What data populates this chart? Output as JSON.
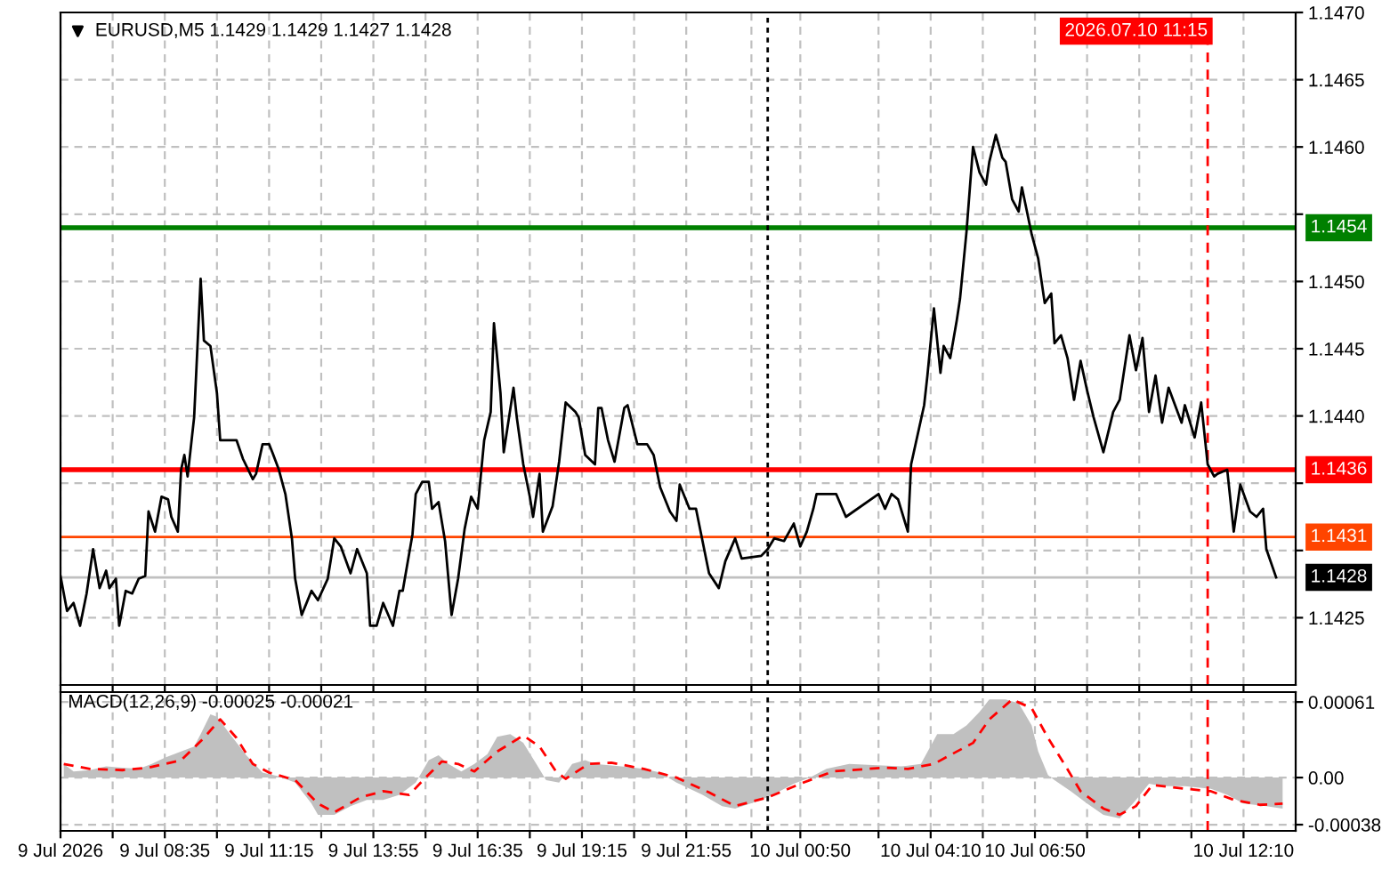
{
  "chart_data": [
    {
      "type": "line",
      "title": "EURUSD,M5 1.1429 1.1429 1.1427 1.1428",
      "xlim": [
        "2026-07-09T05:55",
        "2026-07-10T13:30"
      ],
      "xticks": [
        {
          "value": "2026-07-09T05:55",
          "label": null
        },
        {
          "value": "2026-07-09T07:15",
          "label": null
        },
        {
          "value": "2026-07-09T08:35",
          "label": null
        },
        {
          "value": "2026-07-09T09:55",
          "label": null
        },
        {
          "value": "2026-07-09T11:15",
          "label": null
        },
        {
          "value": "2026-07-09T12:35",
          "label": null
        },
        {
          "value": "2026-07-09T13:55",
          "label": null
        },
        {
          "value": "2026-07-09T15:15",
          "label": null
        },
        {
          "value": "2026-07-09T16:35",
          "label": null
        },
        {
          "value": "2026-07-09T17:55",
          "label": null
        },
        {
          "value": "2026-07-09T19:15",
          "label": null
        },
        {
          "value": "2026-07-09T20:35",
          "label": null
        },
        {
          "value": "2026-07-09T21:55",
          "label": null
        },
        {
          "value": "2026-07-09T23:35",
          "label": null
        },
        {
          "value": "2026-07-10T00:50",
          "label": null
        },
        {
          "value": "2026-07-10T02:50",
          "label": null
        },
        {
          "value": "2026-07-10T04:10",
          "label": null
        },
        {
          "value": "2026-07-10T05:30",
          "label": null
        },
        {
          "value": "2026-07-10T06:50",
          "label": null
        },
        {
          "value": "2026-07-10T08:10",
          "label": null
        },
        {
          "value": "2026-07-10T09:30",
          "label": null
        },
        {
          "value": "2026-07-10T10:50",
          "label": null
        },
        {
          "value": "2026-07-10T12:10",
          "label": null
        }
      ],
      "ylim": [
        1.142,
        1.147
      ],
      "yticks": [
        {
          "value": 1.1425,
          "label": "1.1425"
        },
        {
          "value": 1.143,
          "label": null
        },
        {
          "value": 1.1435,
          "label": null
        },
        {
          "value": 1.144,
          "label": "1.1440"
        },
        {
          "value": 1.1445,
          "label": "1.1445"
        },
        {
          "value": 1.145,
          "label": "1.1450"
        },
        {
          "value": 1.1455,
          "label": null
        },
        {
          "value": 1.146,
          "label": "1.1460"
        },
        {
          "value": 1.1465,
          "label": "1.1465"
        },
        {
          "value": 1.147,
          "label": "1.1470"
        }
      ],
      "tick_labels": "y",
      "grid": true,
      "marker": "none",
      "line_style": "solid",
      "ref_lines": [
        {
          "axis": "y",
          "value": 1.1454,
          "label": "1.1454",
          "color": "#008000",
          "line_style": "solid"
        },
        {
          "axis": "y",
          "value": 1.1436,
          "label": "1.1436",
          "color": "#ff0000",
          "line_style": "solid"
        },
        {
          "axis": "y",
          "value": 1.1431,
          "label": "1.1431",
          "color": "#ff4500",
          "line_style": "solid"
        },
        {
          "axis": "y",
          "value": 1.1428,
          "label": "1.1428",
          "color": "#c0c0c0",
          "line_style": "solid"
        },
        {
          "axis": "x",
          "value": "2026-07-10T00:00",
          "color": "#000000",
          "line_style": "dotted"
        },
        {
          "axis": "x",
          "value": "2026-07-10T11:15",
          "label": "2026.07.10 11:15",
          "color": "#ff0000",
          "line_style": "dashed"
        }
      ],
      "series": [
        {
          "color": "#000000",
          "x": [
            "2026-07-09T05:55",
            "2026-07-09T06:05",
            "2026-07-09T06:15",
            "2026-07-09T06:25",
            "2026-07-09T06:35",
            "2026-07-09T06:45",
            "2026-07-09T06:55",
            "2026-07-09T07:05",
            "2026-07-09T07:10",
            "2026-07-09T07:20",
            "2026-07-09T07:25",
            "2026-07-09T07:35",
            "2026-07-09T07:45",
            "2026-07-09T07:55",
            "2026-07-09T08:05",
            "2026-07-09T08:10",
            "2026-07-09T08:20",
            "2026-07-09T08:30",
            "2026-07-09T08:40",
            "2026-07-09T08:45",
            "2026-07-09T08:55",
            "2026-07-09T09:00",
            "2026-07-09T09:05",
            "2026-07-09T09:10",
            "2026-07-09T09:20",
            "2026-07-09T09:30",
            "2026-07-09T09:35",
            "2026-07-09T09:45",
            "2026-07-09T09:55",
            "2026-07-09T10:00",
            "2026-07-09T10:25",
            "2026-07-09T10:35",
            "2026-07-09T10:50",
            "2026-07-09T10:55",
            "2026-07-09T11:05",
            "2026-07-09T11:15",
            "2026-07-09T11:20",
            "2026-07-09T11:30",
            "2026-07-09T11:40",
            "2026-07-09T11:50",
            "2026-07-09T11:55",
            "2026-07-09T12:05",
            "2026-07-09T12:20",
            "2026-07-09T12:30",
            "2026-07-09T12:45",
            "2026-07-09T12:55",
            "2026-07-09T13:05",
            "2026-07-09T13:20",
            "2026-07-09T13:30",
            "2026-07-09T13:45",
            "2026-07-09T13:50",
            "2026-07-09T14:00",
            "2026-07-09T14:10",
            "2026-07-09T14:25",
            "2026-07-09T14:35",
            "2026-07-09T14:40",
            "2026-07-09T14:55",
            "2026-07-09T15:00",
            "2026-07-09T15:10",
            "2026-07-09T15:20",
            "2026-07-09T15:25",
            "2026-07-09T15:35",
            "2026-07-09T15:45",
            "2026-07-09T15:55",
            "2026-07-09T16:05",
            "2026-07-09T16:15",
            "2026-07-09T16:25",
            "2026-07-09T16:35",
            "2026-07-09T16:45",
            "2026-07-09T16:55",
            "2026-07-09T17:00",
            "2026-07-09T17:10",
            "2026-07-09T17:15",
            "2026-07-09T17:30",
            "2026-07-09T17:35",
            "2026-07-09T17:45",
            "2026-07-09T17:55",
            "2026-07-09T18:00",
            "2026-07-09T18:10",
            "2026-07-09T18:15",
            "2026-07-09T18:30",
            "2026-07-09T18:40",
            "2026-07-09T18:50",
            "2026-07-09T19:05",
            "2026-07-09T19:10",
            "2026-07-09T19:20",
            "2026-07-09T19:35",
            "2026-07-09T19:40",
            "2026-07-09T19:45",
            "2026-07-09T19:55",
            "2026-07-09T20:05",
            "2026-07-09T20:20",
            "2026-07-09T20:25",
            "2026-07-09T20:40",
            "2026-07-09T20:55",
            "2026-07-09T21:05",
            "2026-07-09T21:15",
            "2026-07-09T21:30",
            "2026-07-09T21:40",
            "2026-07-09T21:45",
            "2026-07-09T22:00",
            "2026-07-09T22:10",
            "2026-07-09T22:30",
            "2026-07-09T22:45",
            "2026-07-09T22:55",
            "2026-07-09T23:10",
            "2026-07-09T23:20",
            "2026-07-09T23:50",
            "2026-07-10T00:00",
            "2026-07-10T00:10",
            "2026-07-10T00:25",
            "2026-07-10T00:40",
            "2026-07-10T00:50",
            "2026-07-10T01:00",
            "2026-07-10T01:10",
            "2026-07-10T01:15",
            "2026-07-10T01:45",
            "2026-07-10T02:00",
            "2026-07-10T02:50",
            "2026-07-10T03:00",
            "2026-07-10T03:10",
            "2026-07-10T03:20",
            "2026-07-10T03:35",
            "2026-07-10T03:40",
            "2026-07-10T04:00",
            "2026-07-10T04:05",
            "2026-07-10T04:15",
            "2026-07-10T04:25",
            "2026-07-10T04:30",
            "2026-07-10T04:40",
            "2026-07-10T04:50",
            "2026-07-10T04:55",
            "2026-07-10T05:05",
            "2026-07-10T05:15",
            "2026-07-10T05:25",
            "2026-07-10T05:35",
            "2026-07-10T05:40",
            "2026-07-10T05:50",
            "2026-07-10T06:00",
            "2026-07-10T06:05",
            "2026-07-10T06:15",
            "2026-07-10T06:25",
            "2026-07-10T06:30",
            "2026-07-10T06:45",
            "2026-07-10T06:55",
            "2026-07-10T07:05",
            "2026-07-10T07:15",
            "2026-07-10T07:20",
            "2026-07-10T07:30",
            "2026-07-10T07:40",
            "2026-07-10T07:50",
            "2026-07-10T08:00",
            "2026-07-10T08:10",
            "2026-07-10T08:20",
            "2026-07-10T08:35",
            "2026-07-10T08:50",
            "2026-07-10T09:00",
            "2026-07-10T09:15",
            "2026-07-10T09:25",
            "2026-07-10T09:35",
            "2026-07-10T09:45",
            "2026-07-10T09:55",
            "2026-07-10T10:05",
            "2026-07-10T10:15",
            "2026-07-10T10:35",
            "2026-07-10T10:40",
            "2026-07-10T10:55",
            "2026-07-10T11:05",
            "2026-07-10T11:15",
            "2026-07-10T11:25",
            "2026-07-10T11:30",
            "2026-07-10T11:45",
            "2026-07-10T11:55",
            "2026-07-10T12:05",
            "2026-07-10T12:20",
            "2026-07-10T12:30",
            "2026-07-10T12:40",
            "2026-07-10T12:45",
            "2026-07-10T13:00"
          ],
          "values": [
            1.14281,
            1.14255,
            1.14261,
            1.14244,
            1.14268,
            1.14301,
            1.14272,
            1.14285,
            1.14272,
            1.14279,
            1.14244,
            1.1427,
            1.14268,
            1.14279,
            1.14281,
            1.14329,
            1.14314,
            1.1434,
            1.14338,
            1.14325,
            1.14314,
            1.1436,
            1.14371,
            1.14355,
            1.14399,
            1.14502,
            1.14456,
            1.14452,
            1.14417,
            1.14382,
            1.14382,
            1.14368,
            1.14353,
            1.14357,
            1.14379,
            1.14379,
            1.14373,
            1.1436,
            1.14342,
            1.14309,
            1.14279,
            1.14252,
            1.1427,
            1.14263,
            1.14279,
            1.14309,
            1.14303,
            1.14283,
            1.14301,
            1.14283,
            1.14244,
            1.14244,
            1.14261,
            1.14244,
            1.1427,
            1.1427,
            1.14312,
            1.14342,
            1.14351,
            1.14351,
            1.14331,
            1.14336,
            1.14307,
            1.14252,
            1.14279,
            1.14316,
            1.1434,
            1.14331,
            1.14382,
            1.14403,
            1.14469,
            1.14417,
            1.14373,
            1.14421,
            1.14399,
            1.14364,
            1.1434,
            1.14325,
            1.14357,
            1.14314,
            1.14333,
            1.14366,
            1.1441,
            1.14403,
            1.14399,
            1.14371,
            1.14364,
            1.14406,
            1.14406,
            1.14382,
            1.14366,
            1.14406,
            1.14408,
            1.14379,
            1.14379,
            1.14371,
            1.14347,
            1.14329,
            1.14322,
            1.14349,
            1.14331,
            1.14331,
            1.14283,
            1.14272,
            1.14292,
            1.14309,
            1.14294,
            1.14296,
            1.14301,
            1.14309,
            1.14307,
            1.1432,
            1.14303,
            1.14314,
            1.14331,
            1.14342,
            1.14342,
            1.14325,
            1.14342,
            1.14331,
            1.14342,
            1.14338,
            1.14314,
            1.14364,
            1.14408,
            1.1443,
            1.1448,
            1.14432,
            1.14452,
            1.14443,
            1.14471,
            1.14487,
            1.14537,
            1.146,
            1.14581,
            1.14572,
            1.14589,
            1.14609,
            1.14592,
            1.14589,
            1.14561,
            1.14552,
            1.1457,
            1.14535,
            1.14517,
            1.14484,
            1.14491,
            1.14454,
            1.1446,
            1.14443,
            1.14412,
            1.14441,
            1.14419,
            1.14399,
            1.14373,
            1.14403,
            1.14412,
            1.1446,
            1.14434,
            1.14458,
            1.14403,
            1.1443,
            1.14395,
            1.14421,
            1.14395,
            1.14408,
            1.14384,
            1.1441,
            1.14364,
            1.14355,
            1.14357,
            1.1436,
            1.14314,
            1.14349,
            1.14329,
            1.14325,
            1.14331,
            1.14301,
            1.1428
          ]
        }
      ]
    },
    {
      "type": "bar",
      "title": "MACD(12,26,9) -0.00025 -0.00021",
      "xlim": [
        "2026-07-09T05:55",
        "2026-07-10T13:30"
      ],
      "xticks": [
        {
          "value": "2026-07-09T05:55",
          "label": "9 Jul 2026"
        },
        {
          "value": "2026-07-09T07:15",
          "label": null
        },
        {
          "value": "2026-07-09T08:35",
          "label": "9 Jul 08:35"
        },
        {
          "value": "2026-07-09T09:55",
          "label": null
        },
        {
          "value": "2026-07-09T11:15",
          "label": "9 Jul 11:15"
        },
        {
          "value": "2026-07-09T12:35",
          "label": null
        },
        {
          "value": "2026-07-09T13:55",
          "label": "9 Jul 13:55"
        },
        {
          "value": "2026-07-09T15:15",
          "label": null
        },
        {
          "value": "2026-07-09T16:35",
          "label": "9 Jul 16:35"
        },
        {
          "value": "2026-07-09T17:55",
          "label": null
        },
        {
          "value": "2026-07-09T19:15",
          "label": "9 Jul 19:15"
        },
        {
          "value": "2026-07-09T20:35",
          "label": null
        },
        {
          "value": "2026-07-09T21:55",
          "label": "9 Jul 21:55"
        },
        {
          "value": "2026-07-09T23:35",
          "label": null
        },
        {
          "value": "2026-07-10T00:50",
          "label": "10 Jul 00:50"
        },
        {
          "value": "2026-07-10T02:50",
          "label": null
        },
        {
          "value": "2026-07-10T04:10",
          "label": "10 Jul 04:10"
        },
        {
          "value": "2026-07-10T05:30",
          "label": null
        },
        {
          "value": "2026-07-10T06:50",
          "label": "10 Jul 06:50"
        },
        {
          "value": "2026-07-10T08:10",
          "label": null
        },
        {
          "value": "2026-07-10T09:30",
          "label": null
        },
        {
          "value": "2026-07-10T10:50",
          "label": null
        },
        {
          "value": "2026-07-10T12:10",
          "label": "10 Jul 12:10"
        }
      ],
      "ylim": [
        -0.00043,
        0.00069
      ],
      "yticks": [
        {
          "value": 0.00061,
          "label": "0.00061"
        },
        {
          "value": 0,
          "label": "0.00"
        },
        {
          "value": -0.00038,
          "label": "-0.00038"
        }
      ],
      "grid": true,
      "ref_lines": [
        {
          "axis": "x",
          "value": "2026-07-10T00:00",
          "color": "#000000",
          "line_style": "dotted"
        },
        {
          "axis": "x",
          "value": "2026-07-10T11:15",
          "color": "#ff0000",
          "line_style": "dashed"
        }
      ],
      "series": [
        {
          "type": "area",
          "color": "#c0c0c0",
          "x": [
            "2026-07-09T06:00",
            "2026-07-09T06:15",
            "2026-07-09T06:40",
            "2026-07-09T07:05",
            "2026-07-09T07:30",
            "2026-07-09T07:55",
            "2026-07-09T08:15",
            "2026-07-09T08:35",
            "2026-07-09T09:00",
            "2026-07-09T09:20",
            "2026-07-09T09:30",
            "2026-07-09T09:45",
            "2026-07-09T09:55",
            "2026-07-09T10:15",
            "2026-07-09T10:40",
            "2026-07-09T11:05",
            "2026-07-09T11:30",
            "2026-07-09T11:55",
            "2026-07-09T12:20",
            "2026-07-09T12:30",
            "2026-07-09T12:55",
            "2026-07-09T13:20",
            "2026-07-09T13:45",
            "2026-07-09T14:10",
            "2026-07-09T14:35",
            "2026-07-09T15:00",
            "2026-07-09T15:20",
            "2026-07-09T15:35",
            "2026-07-09T15:50",
            "2026-07-09T16:10",
            "2026-07-09T16:30",
            "2026-07-09T16:50",
            "2026-07-09T17:05",
            "2026-07-09T17:25",
            "2026-07-09T17:45",
            "2026-07-09T18:05",
            "2026-07-09T18:20",
            "2026-07-09T18:40",
            "2026-07-09T19:00",
            "2026-07-09T19:20",
            "2026-07-09T19:35",
            "2026-07-09T20:15",
            "2026-07-09T20:50",
            "2026-07-09T21:15",
            "2026-07-09T21:40",
            "2026-07-09T22:20",
            "2026-07-09T22:50",
            "2026-07-09T23:10",
            "2026-07-09T23:50",
            "2026-07-10T00:15",
            "2026-07-10T00:40",
            "2026-07-10T01:05",
            "2026-07-10T01:30",
            "2026-07-10T02:05",
            "2026-07-10T03:25",
            "2026-07-10T03:55",
            "2026-07-10T04:20",
            "2026-07-10T04:45",
            "2026-07-10T05:05",
            "2026-07-10T05:25",
            "2026-07-10T05:40",
            "2026-07-10T06:05",
            "2026-07-10T06:25",
            "2026-07-10T06:45",
            "2026-07-10T06:55",
            "2026-07-10T07:10",
            "2026-07-10T07:20",
            "2026-07-10T07:45",
            "2026-07-10T08:10",
            "2026-07-10T08:35",
            "2026-07-10T09:00",
            "2026-07-10T09:25",
            "2026-07-10T09:45",
            "2026-07-10T10:05",
            "2026-07-10T10:40",
            "2026-07-10T11:20",
            "2026-07-10T11:45",
            "2026-07-10T12:10",
            "2026-07-10T12:45",
            "2026-07-10T13:10"
          ],
          "values": [
            0.00011,
            5e-05,
            6e-05,
            9e-05,
            8e-05,
            7e-05,
            0.00011,
            0.00016,
            0.00021,
            0.00025,
            0.00035,
            0.00051,
            0.00049,
            0.00035,
            0.00018,
            4e-05,
            1e-05,
            -4e-05,
            -0.00021,
            -0.0003,
            -0.0003,
            -0.00023,
            -0.00018,
            -0.00018,
            -0.00014,
            -4e-05,
            0.00014,
            0.00018,
            0.00011,
            5e-05,
            0.00011,
            0.00019,
            0.00033,
            0.00035,
            0.00028,
            0.00011,
            -2e-05,
            -4e-05,
            0.00011,
            0.00014,
            0.00011,
            9e-05,
            7e-05,
            4e-05,
            -4e-05,
            -0.00014,
            -0.00023,
            -0.00025,
            -0.00018,
            -0.00012,
            -5e-05,
            0,
            7e-05,
            0.00011,
            9e-05,
            0.00011,
            0.00035,
            0.00035,
            0.00042,
            0.00053,
            0.00063,
            0.00063,
            0.0006,
            0.00042,
            0.00021,
            2e-05,
            -2e-05,
            -0.00011,
            -0.00021,
            -0.0003,
            -0.00033,
            -0.00018,
            -5e-05,
            -7e-05,
            -7e-05,
            -9e-05,
            -0.00014,
            -0.00021,
            -0.00023,
            -0.00025
          ]
        },
        {
          "type": "line",
          "color": "#ff0000",
          "line_style": "dashed",
          "x": [
            "2026-07-09T06:00",
            "2026-07-09T06:40",
            "2026-07-09T07:30",
            "2026-07-09T08:10",
            "2026-07-09T09:00",
            "2026-07-09T09:35",
            "2026-07-09T10:00",
            "2026-07-09T10:25",
            "2026-07-09T10:50",
            "2026-07-09T11:15",
            "2026-07-09T11:55",
            "2026-07-09T12:30",
            "2026-07-09T12:55",
            "2026-07-09T13:35",
            "2026-07-09T14:10",
            "2026-07-09T14:50",
            "2026-07-09T15:15",
            "2026-07-09T15:40",
            "2026-07-09T16:05",
            "2026-07-09T16:30",
            "2026-07-09T17:05",
            "2026-07-09T17:45",
            "2026-07-09T18:10",
            "2026-07-09T18:35",
            "2026-07-09T18:50",
            "2026-07-09T19:25",
            "2026-07-09T20:00",
            "2026-07-09T20:50",
            "2026-07-09T21:40",
            "2026-07-09T22:30",
            "2026-07-09T23:10",
            "2026-07-10T00:00",
            "2026-07-10T00:50",
            "2026-07-10T01:40",
            "2026-07-10T03:00",
            "2026-07-10T03:35",
            "2026-07-10T04:15",
            "2026-07-10T04:50",
            "2026-07-10T05:15",
            "2026-07-10T05:40",
            "2026-07-10T06:15",
            "2026-07-10T06:45",
            "2026-07-10T07:10",
            "2026-07-10T07:35",
            "2026-07-10T08:00",
            "2026-07-10T08:35",
            "2026-07-10T09:00",
            "2026-07-10T09:25",
            "2026-07-10T09:50",
            "2026-07-10T10:40",
            "2026-07-10T11:20",
            "2026-07-10T11:55",
            "2026-07-10T12:35",
            "2026-07-10T13:10"
          ],
          "values": [
            0.00011,
            7e-05,
            6e-05,
            8e-05,
            0.00014,
            0.00032,
            0.00047,
            0.00032,
            0.00011,
            4e-05,
            -2e-05,
            -0.00021,
            -0.00028,
            -0.00016,
            -0.00011,
            -0.00014,
            0,
            0.00013,
            0.00011,
            5e-05,
            0.00021,
            0.00034,
            0.00025,
            5e-05,
            -1e-05,
            0.00011,
            0.00012,
            7e-05,
            0,
            -0.00012,
            -0.00023,
            -0.00016,
            -5e-05,
            5e-05,
            8e-05,
            7e-05,
            0.00011,
            0.00021,
            0.00028,
            0.00047,
            0.00063,
            0.00056,
            0.00032,
            0.00011,
            -0.00011,
            -0.00025,
            -0.0003,
            -0.00023,
            -6e-05,
            -9e-05,
            -0.00011,
            -0.00018,
            -0.00022,
            -0.00021
          ]
        }
      ]
    }
  ]
}
